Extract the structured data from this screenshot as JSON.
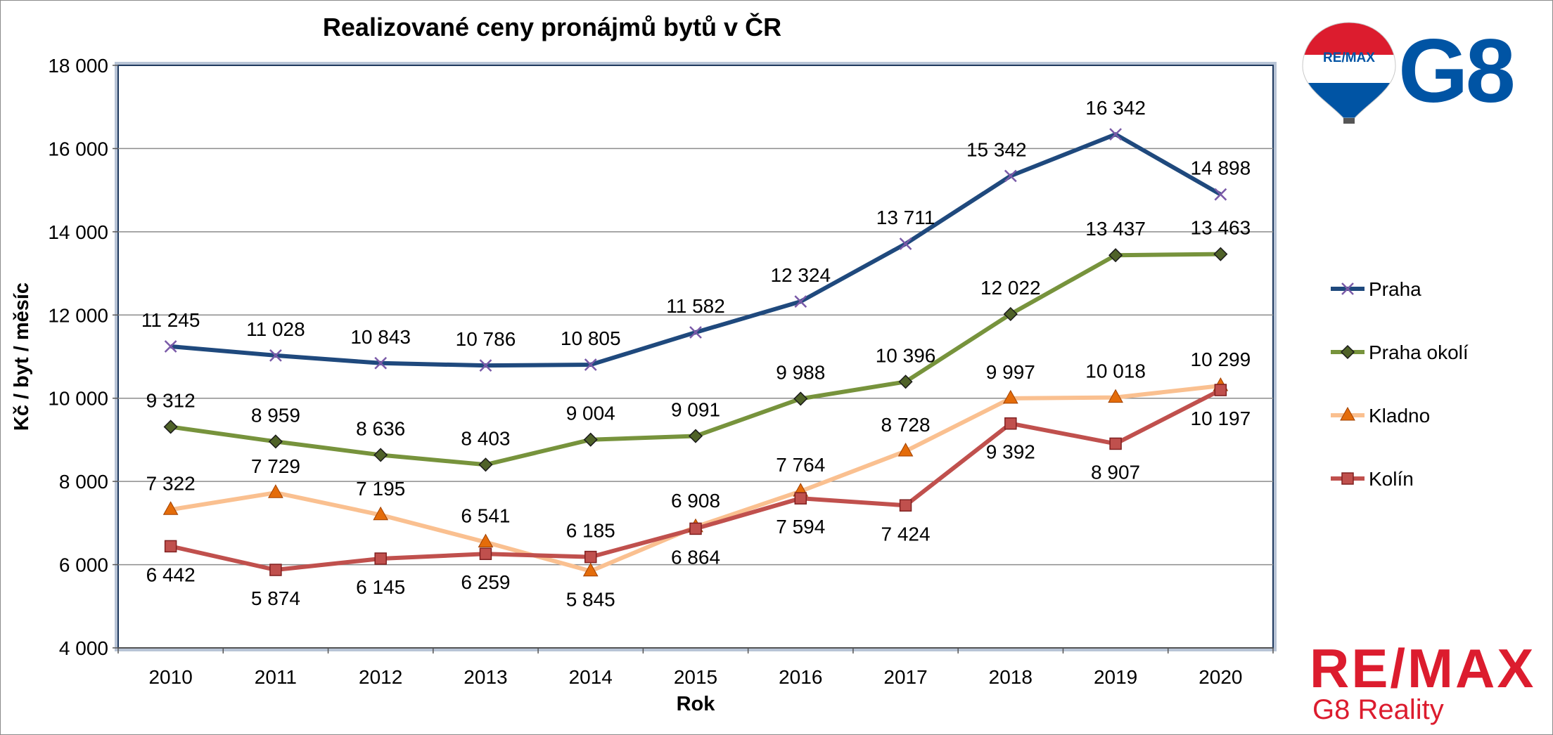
{
  "chart_data": {
    "type": "line",
    "title": "Realizované ceny pronájmů bytů v ČR",
    "xlabel": "Rok",
    "ylabel": "Kč / byt / měsíc",
    "ylim": [
      4000,
      18000
    ],
    "ytick_step": 2000,
    "yticks": [
      "4 000",
      "6 000",
      "8 000",
      "10 000",
      "12 000",
      "14 000",
      "16 000",
      "18 000"
    ],
    "grid": true,
    "legend_position": "right",
    "categories": [
      "2010",
      "2011",
      "2012",
      "2013",
      "2014",
      "2015",
      "2016",
      "2017",
      "2018",
      "2019",
      "2020"
    ],
    "series": [
      {
        "name": "Praha",
        "color": "#1f497d",
        "marker": "x",
        "marker_color": "#7a5aa8",
        "values": [
          11245,
          11028,
          10843,
          10786,
          10805,
          11582,
          12324,
          13711,
          15342,
          16342,
          14898
        ],
        "labels": [
          "11 245",
          "11 028",
          "10 843",
          "10 786",
          "10 805",
          "11 582",
          "12 324",
          "13 711",
          "15 342",
          "16 342",
          "14 898"
        ]
      },
      {
        "name": "Praha okolí",
        "color": "#77933c",
        "marker": "diamond",
        "marker_color": "#4f6228",
        "values": [
          9312,
          8959,
          8636,
          8403,
          9004,
          9091,
          9988,
          10396,
          12022,
          13437,
          13463
        ],
        "labels": [
          "9 312",
          "8 959",
          "8 636",
          "8 403",
          "9 004",
          "9 091",
          "9 988",
          "10 396",
          "12 022",
          "13 437",
          "13 463"
        ]
      },
      {
        "name": "Kladno",
        "color": "#fac090",
        "marker": "triangle",
        "marker_color": "#e46c0a",
        "values": [
          7322,
          7729,
          7195,
          6541,
          5845,
          6908,
          7764,
          8728,
          9997,
          10018,
          10299
        ],
        "labels": [
          "7 322",
          "7 729",
          "7 195",
          "6 541",
          "5 845",
          "6 908",
          "7 764",
          "8 728",
          "9 997",
          "10 018",
          "10 299"
        ]
      },
      {
        "name": "Kolín",
        "color": "#c0504d",
        "marker": "square",
        "marker_color": "#c0504d",
        "values": [
          6442,
          5874,
          6145,
          6259,
          6185,
          6864,
          7594,
          7424,
          9392,
          8907,
          10197
        ],
        "labels": [
          "6 442",
          "5 874",
          "6 145",
          "6 259",
          "6 185",
          "6 864",
          "7 594",
          "7 424",
          "9 392",
          "8 907",
          "10 197"
        ]
      }
    ]
  },
  "branding": {
    "top_logo_text": "RE/MAX",
    "top_logo_mark": "G8",
    "bottom_logo_name": "RE/MAX",
    "bottom_logo_sub": "G8 Reality",
    "brand_red": "#dc1c2e",
    "brand_blue": "#0054a4"
  }
}
